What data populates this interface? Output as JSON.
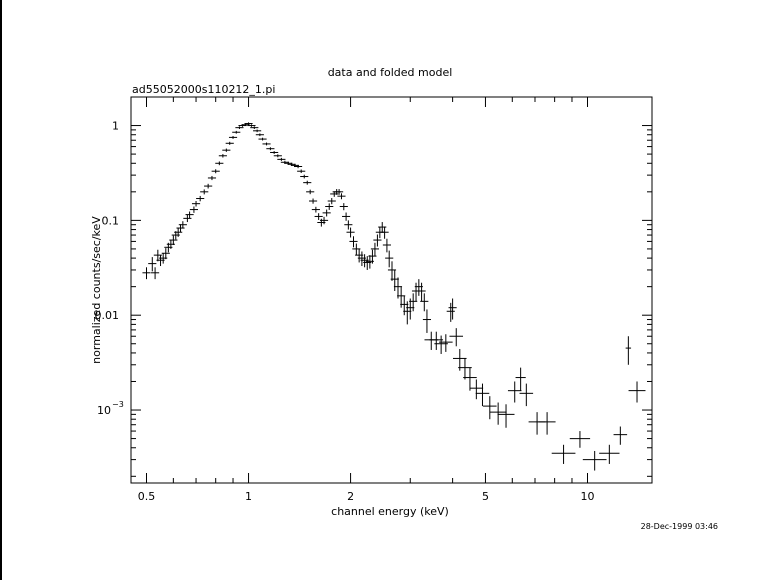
{
  "chart_data": {
    "type": "scatter",
    "title": "data and folded model",
    "subtitle": "ad55052000s110212_1.pi",
    "xlabel": "channel energy (keV)",
    "ylabel": "normalized counts/sec/keV",
    "timestamp": "28-Dec-1999 03:46",
    "x_scale": "log",
    "y_scale": "log",
    "xlim": [
      0.45,
      15.5
    ],
    "ylim": [
      0.00017,
      2.0
    ],
    "x_ticks": [
      {
        "value": 0.5,
        "label": "0.5"
      },
      {
        "value": 1,
        "label": "1"
      },
      {
        "value": 2,
        "label": "2"
      },
      {
        "value": 5,
        "label": "5"
      },
      {
        "value": 10,
        "label": "10"
      }
    ],
    "y_ticks": [
      {
        "value": 1,
        "label": "1"
      },
      {
        "value": 0.1,
        "label": "0.1"
      },
      {
        "value": 0.01,
        "label": "0.01"
      },
      {
        "value": 0.001,
        "label": "10",
        "exponent": "−3"
      }
    ],
    "grid": false,
    "series": [
      {
        "points": [
          [
            0.5,
            0.028,
            0.012,
            0.004
          ],
          [
            0.52,
            0.035,
            0.012,
            0.006
          ],
          [
            0.53,
            0.028,
            0.012,
            0.004
          ],
          [
            0.54,
            0.043,
            0.012,
            0.006
          ],
          [
            0.55,
            0.038,
            0.012,
            0.005
          ],
          [
            0.56,
            0.04,
            0.012,
            0.005
          ],
          [
            0.57,
            0.045,
            0.012,
            0.006
          ],
          [
            0.58,
            0.052,
            0.012,
            0.006
          ],
          [
            0.59,
            0.056,
            0.012,
            0.006
          ],
          [
            0.6,
            0.062,
            0.012,
            0.007
          ],
          [
            0.61,
            0.07,
            0.012,
            0.007
          ],
          [
            0.62,
            0.075,
            0.012,
            0.008
          ],
          [
            0.63,
            0.083,
            0.012,
            0.008
          ],
          [
            0.64,
            0.09,
            0.012,
            0.008
          ],
          [
            0.66,
            0.105,
            0.012,
            0.009
          ],
          [
            0.67,
            0.115,
            0.012,
            0.009
          ],
          [
            0.69,
            0.13,
            0.012,
            0.01
          ],
          [
            0.7,
            0.15,
            0.012,
            0.01
          ],
          [
            0.72,
            0.17,
            0.012,
            0.011
          ],
          [
            0.74,
            0.2,
            0.012,
            0.012
          ],
          [
            0.76,
            0.23,
            0.012,
            0.013
          ],
          [
            0.78,
            0.28,
            0.012,
            0.014
          ],
          [
            0.8,
            0.33,
            0.012,
            0.016
          ],
          [
            0.82,
            0.4,
            0.012,
            0.018
          ],
          [
            0.84,
            0.48,
            0.012,
            0.02
          ],
          [
            0.86,
            0.55,
            0.012,
            0.022
          ],
          [
            0.88,
            0.65,
            0.012,
            0.024
          ],
          [
            0.9,
            0.75,
            0.012,
            0.026
          ],
          [
            0.92,
            0.85,
            0.012,
            0.028
          ],
          [
            0.94,
            0.95,
            0.012,
            0.03
          ],
          [
            0.96,
            1.0,
            0.012,
            0.03
          ],
          [
            0.98,
            1.02,
            0.012,
            0.03
          ],
          [
            1.0,
            1.05,
            0.012,
            0.03
          ],
          [
            1.02,
            1.0,
            0.012,
            0.03
          ],
          [
            1.04,
            0.95,
            0.012,
            0.03
          ],
          [
            1.06,
            0.88,
            0.012,
            0.028
          ],
          [
            1.08,
            0.8,
            0.012,
            0.026
          ],
          [
            1.1,
            0.72,
            0.012,
            0.024
          ],
          [
            1.13,
            0.64,
            0.012,
            0.022
          ],
          [
            1.16,
            0.57,
            0.012,
            0.02
          ],
          [
            1.19,
            0.52,
            0.012,
            0.018
          ],
          [
            1.22,
            0.48,
            0.012,
            0.017
          ],
          [
            1.25,
            0.44,
            0.012,
            0.016
          ],
          [
            1.28,
            0.41,
            0.012,
            0.015
          ],
          [
            1.31,
            0.4,
            0.012,
            0.015
          ],
          [
            1.34,
            0.39,
            0.012,
            0.015
          ],
          [
            1.37,
            0.38,
            0.012,
            0.015
          ],
          [
            1.4,
            0.37,
            0.012,
            0.015
          ],
          [
            1.43,
            0.33,
            0.012,
            0.014
          ],
          [
            1.46,
            0.29,
            0.012,
            0.013
          ],
          [
            1.49,
            0.25,
            0.012,
            0.012
          ],
          [
            1.52,
            0.2,
            0.012,
            0.011
          ],
          [
            1.55,
            0.16,
            0.012,
            0.01
          ],
          [
            1.58,
            0.13,
            0.012,
            0.009
          ],
          [
            1.61,
            0.11,
            0.012,
            0.009
          ],
          [
            1.64,
            0.095,
            0.012,
            0.009
          ],
          [
            1.67,
            0.1,
            0.012,
            0.009
          ],
          [
            1.7,
            0.12,
            0.012,
            0.01
          ],
          [
            1.73,
            0.14,
            0.012,
            0.011
          ],
          [
            1.76,
            0.16,
            0.012,
            0.012
          ],
          [
            1.79,
            0.19,
            0.012,
            0.013
          ],
          [
            1.82,
            0.2,
            0.012,
            0.014
          ],
          [
            1.85,
            0.2,
            0.012,
            0.014
          ],
          [
            1.88,
            0.18,
            0.012,
            0.013
          ],
          [
            1.91,
            0.14,
            0.012,
            0.012
          ],
          [
            1.94,
            0.11,
            0.012,
            0.011
          ],
          [
            1.97,
            0.09,
            0.012,
            0.01
          ],
          [
            2.0,
            0.075,
            0.012,
            0.009
          ],
          [
            2.04,
            0.06,
            0.012,
            0.008
          ],
          [
            2.08,
            0.05,
            0.012,
            0.007
          ],
          [
            2.12,
            0.043,
            0.012,
            0.007
          ],
          [
            2.16,
            0.04,
            0.012,
            0.007
          ],
          [
            2.2,
            0.038,
            0.012,
            0.006
          ],
          [
            2.24,
            0.036,
            0.012,
            0.006
          ],
          [
            2.28,
            0.037,
            0.012,
            0.006
          ],
          [
            2.32,
            0.042,
            0.012,
            0.007
          ],
          [
            2.36,
            0.05,
            0.012,
            0.008
          ],
          [
            2.4,
            0.062,
            0.012,
            0.009
          ],
          [
            2.44,
            0.075,
            0.012,
            0.01
          ],
          [
            2.48,
            0.085,
            0.012,
            0.011
          ],
          [
            2.52,
            0.075,
            0.012,
            0.011
          ],
          [
            2.56,
            0.055,
            0.012,
            0.009
          ],
          [
            2.6,
            0.04,
            0.012,
            0.008
          ],
          [
            2.65,
            0.03,
            0.012,
            0.007
          ],
          [
            2.7,
            0.024,
            0.012,
            0.006
          ],
          [
            2.76,
            0.02,
            0.012,
            0.005
          ],
          [
            2.82,
            0.016,
            0.012,
            0.004
          ],
          [
            2.88,
            0.013,
            0.012,
            0.003
          ],
          [
            2.94,
            0.011,
            0.012,
            0.003
          ],
          [
            3.0,
            0.012,
            0.012,
            0.003
          ],
          [
            3.06,
            0.014,
            0.012,
            0.003
          ],
          [
            3.12,
            0.018,
            0.012,
            0.004
          ],
          [
            3.18,
            0.02,
            0.012,
            0.004
          ],
          [
            3.24,
            0.018,
            0.012,
            0.004
          ],
          [
            3.3,
            0.014,
            0.012,
            0.003
          ],
          [
            3.36,
            0.009,
            0.012,
            0.0025
          ],
          [
            3.46,
            0.0055,
            0.02,
            0.0012
          ],
          [
            3.58,
            0.0055,
            0.02,
            0.0012
          ],
          [
            3.7,
            0.005,
            0.02,
            0.0011
          ],
          [
            3.82,
            0.0052,
            0.02,
            0.0011
          ],
          [
            3.95,
            0.011,
            0.012,
            0.0025
          ],
          [
            4.0,
            0.012,
            0.012,
            0.003
          ],
          [
            4.1,
            0.006,
            0.02,
            0.0013
          ],
          [
            4.2,
            0.0035,
            0.02,
            0.0009
          ],
          [
            4.35,
            0.0028,
            0.02,
            0.0007
          ],
          [
            4.5,
            0.0022,
            0.02,
            0.0006
          ],
          [
            4.7,
            0.0017,
            0.02,
            0.0004
          ],
          [
            4.9,
            0.0015,
            0.02,
            0.0004
          ],
          [
            5.15,
            0.0011,
            0.02,
            0.0003
          ],
          [
            5.45,
            0.00095,
            0.025,
            0.00025
          ],
          [
            5.75,
            0.0009,
            0.025,
            0.00025
          ],
          [
            6.1,
            0.0016,
            0.02,
            0.0004
          ],
          [
            6.35,
            0.0022,
            0.015,
            0.0006
          ],
          [
            6.6,
            0.0015,
            0.02,
            0.0004
          ],
          [
            7.1,
            0.00075,
            0.025,
            0.0002
          ],
          [
            7.6,
            0.00075,
            0.025,
            0.0002
          ],
          [
            8.5,
            0.00035,
            0.035,
            8e-05
          ],
          [
            9.5,
            0.0005,
            0.03,
            0.0001
          ],
          [
            10.5,
            0.0003,
            0.035,
            7e-05
          ],
          [
            11.6,
            0.00035,
            0.03,
            8e-05
          ],
          [
            12.5,
            0.00055,
            0.02,
            0.00012
          ],
          [
            13.2,
            0.0045,
            0.008,
            0.0015
          ],
          [
            14.0,
            0.0016,
            0.025,
            0.0004
          ]
        ],
        "point_format": [
          "x_keV",
          "y",
          "x_halfwidth_dex",
          "y_error"
        ]
      }
    ]
  }
}
